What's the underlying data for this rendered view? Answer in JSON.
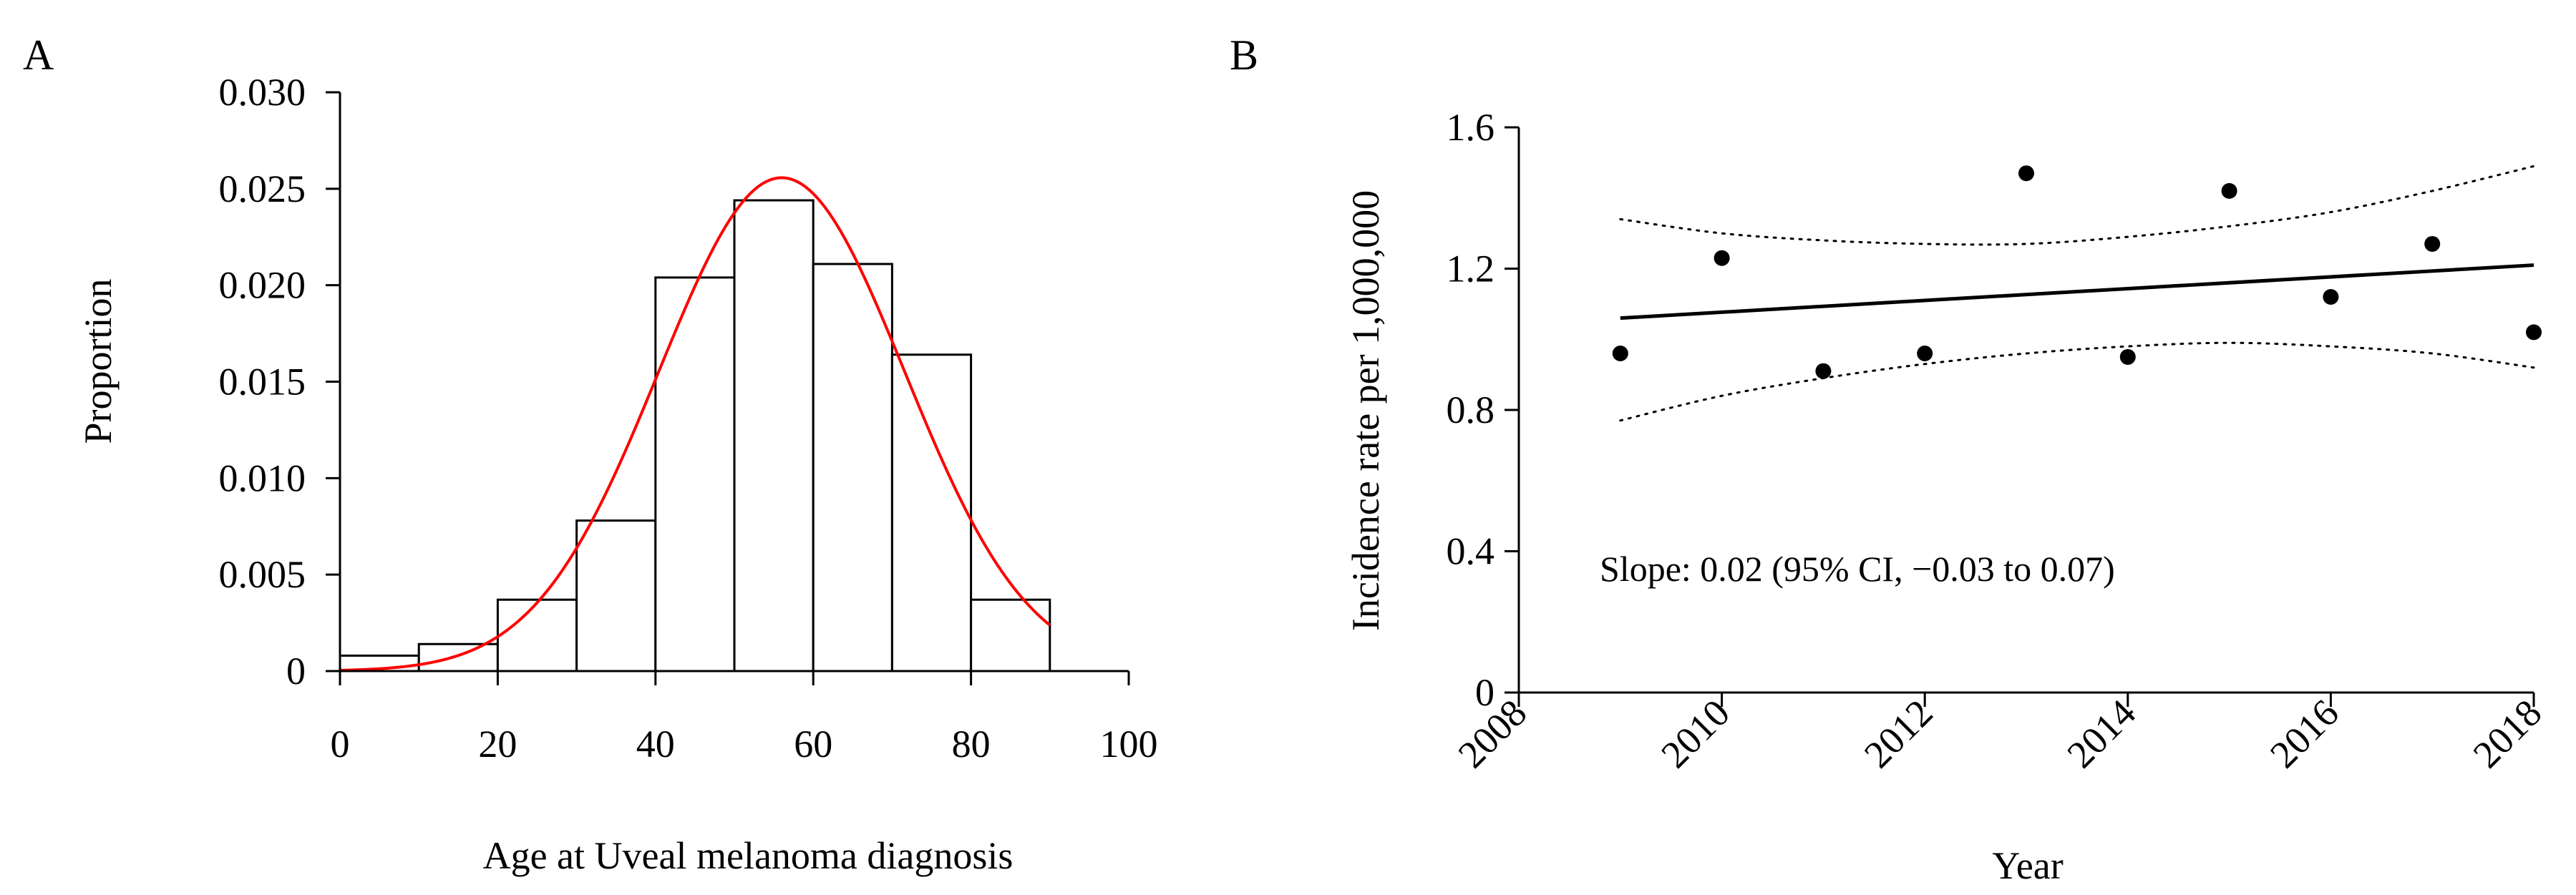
{
  "panels": {
    "a_label": "A",
    "b_label": "B"
  },
  "chart_data": [
    {
      "type": "bar",
      "panel": "A",
      "xlabel": "Age at Uveal melanoma diagnosis",
      "ylabel": "Proportion",
      "xlim": [
        0,
        100
      ],
      "ylim": [
        0,
        0.03
      ],
      "xticks": [
        0,
        20,
        40,
        60,
        80,
        100
      ],
      "yticks": [
        0,
        0.005,
        0.01,
        0.015,
        0.02,
        0.025,
        0.03
      ],
      "xtick_labels": [
        "0",
        "20",
        "40",
        "60",
        "80",
        "100"
      ],
      "ytick_labels": [
        "0",
        "0.005",
        "0.010",
        "0.015",
        "0.020",
        "0.025",
        "0.030"
      ],
      "bins": [
        {
          "start": 0,
          "end": 10,
          "value": 0.0008
        },
        {
          "start": 10,
          "end": 20,
          "value": 0.0014
        },
        {
          "start": 20,
          "end": 30,
          "value": 0.0037
        },
        {
          "start": 30,
          "end": 40,
          "value": 0.0078
        },
        {
          "start": 40,
          "end": 50,
          "value": 0.0204
        },
        {
          "start": 50,
          "end": 60,
          "value": 0.0244
        },
        {
          "start": 60,
          "end": 70,
          "value": 0.0211
        },
        {
          "start": 70,
          "end": 80,
          "value": 0.0164
        },
        {
          "start": 80,
          "end": 90,
          "value": 0.0037
        }
      ],
      "density_curve": {
        "color": "#ff0000",
        "mean": 56,
        "sd": 15.6,
        "x_range": [
          0,
          90
        ]
      },
      "bar_fill": "#ffffff",
      "bar_stroke": "#000000"
    },
    {
      "type": "scatter",
      "panel": "B",
      "xlabel": "Year",
      "ylabel": "Incidence rate per 1,000,000",
      "xlim": [
        2008,
        2018
      ],
      "ylim": [
        0,
        1.6
      ],
      "xticks": [
        2008,
        2010,
        2012,
        2014,
        2016,
        2018
      ],
      "yticks": [
        0,
        0.4,
        0.8,
        1.2,
        1.6
      ],
      "xtick_labels": [
        "2008",
        "2010",
        "2012",
        "2014",
        "2016",
        "2018"
      ],
      "ytick_labels": [
        "0",
        "0.4",
        "0.8",
        "1.2",
        "1.6"
      ],
      "points": [
        {
          "x": 2009,
          "y": 0.96
        },
        {
          "x": 2010,
          "y": 1.23
        },
        {
          "x": 2011,
          "y": 0.91
        },
        {
          "x": 2012,
          "y": 0.96
        },
        {
          "x": 2013,
          "y": 1.47
        },
        {
          "x": 2014,
          "y": 0.95
        },
        {
          "x": 2015,
          "y": 1.42
        },
        {
          "x": 2016,
          "y": 1.12
        },
        {
          "x": 2017,
          "y": 1.27
        },
        {
          "x": 2018,
          "y": 1.02
        }
      ],
      "fit_line": {
        "x": [
          2009,
          2018
        ],
        "y": [
          1.06,
          1.21
        ]
      },
      "ci_upper": {
        "x": [
          2009,
          2010,
          2011,
          2012,
          2013,
          2014,
          2015,
          2016,
          2017,
          2018
        ],
        "y": [
          1.34,
          1.3,
          1.28,
          1.27,
          1.27,
          1.29,
          1.32,
          1.36,
          1.42,
          1.49
        ]
      },
      "ci_lower": {
        "x": [
          2009,
          2010,
          2011,
          2012,
          2013,
          2014,
          2015,
          2016,
          2017,
          2018
        ],
        "y": [
          0.77,
          0.84,
          0.89,
          0.93,
          0.96,
          0.98,
          0.99,
          0.98,
          0.96,
          0.92
        ]
      },
      "annotation": "Slope: 0.02 (95% CI, −0.03 to 0.07)"
    }
  ]
}
